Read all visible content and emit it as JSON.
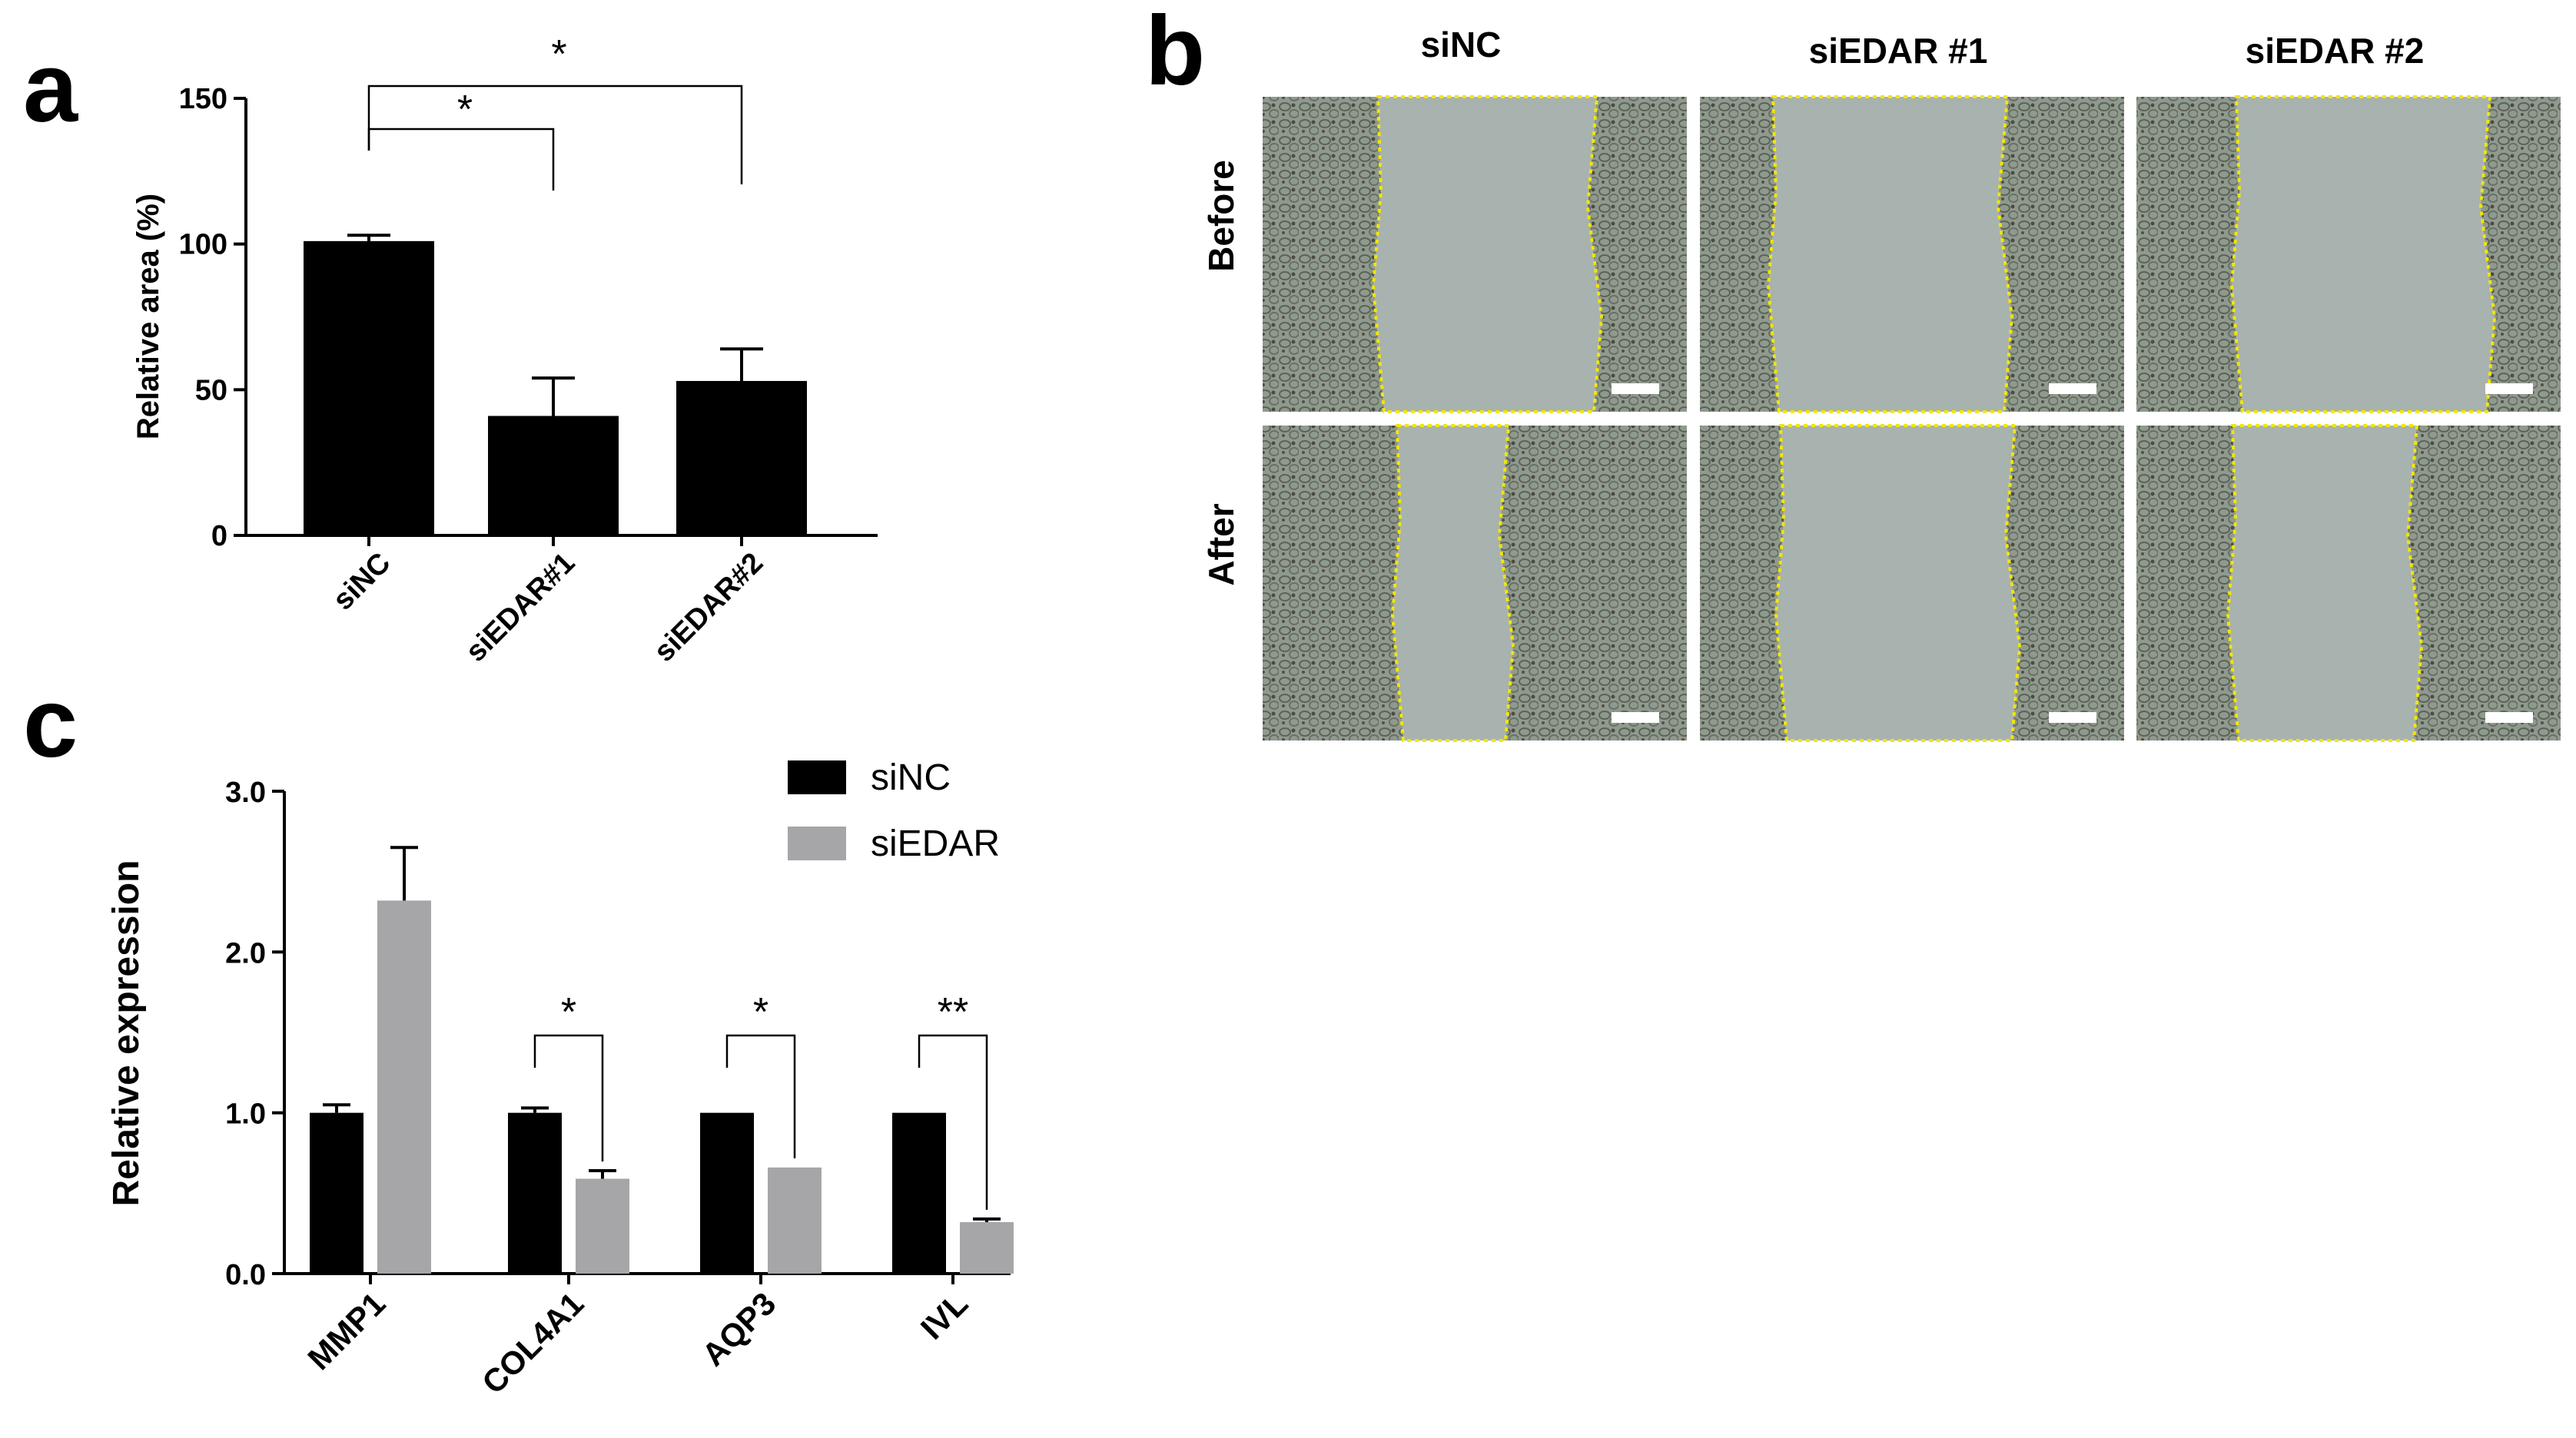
{
  "panels": {
    "a": "a",
    "b": "b",
    "c": "c"
  },
  "micrographs": {
    "columns": [
      "siNC",
      "siEDAR #1",
      "siEDAR #2"
    ],
    "rows": [
      "Before",
      "After"
    ],
    "wound_line_color": "#f2e600",
    "tile_color": "#9aa69c"
  },
  "chart_data": [
    {
      "type": "bar",
      "panel": "a",
      "categories": [
        "siNC",
        "siEDAR#1",
        "siEDAR#2"
      ],
      "values": [
        101,
        41,
        53
      ],
      "errors": [
        2,
        13,
        11
      ],
      "ylabel": "Relative area (%)",
      "ylim": [
        0,
        150
      ],
      "yticks": [
        "0",
        "50",
        "100",
        "150"
      ],
      "bar_color": "#000000",
      "significance": [
        {
          "from": 0,
          "to": 1,
          "label": "*"
        },
        {
          "from": 0,
          "to": 2,
          "label": "*"
        }
      ]
    },
    {
      "type": "bar",
      "panel": "c",
      "categories": [
        "MMP1",
        "COL4A1",
        "AQP3",
        "IVL"
      ],
      "series": [
        {
          "name": "siNC",
          "color": "#000000",
          "values": [
            1.0,
            1.0,
            1.0,
            1.0
          ],
          "errors": [
            0.05,
            0.03,
            0.0,
            0.0
          ]
        },
        {
          "name": "siEDAR",
          "color": "#a6a6a8",
          "values": [
            2.32,
            0.59,
            0.66,
            0.32
          ],
          "errors": [
            0.33,
            0.05,
            0.0,
            0.02
          ]
        }
      ],
      "ylabel": "Relative expression",
      "ylim": [
        0,
        3.0
      ],
      "yticks": [
        "0.0",
        "1.0",
        "2.0",
        "3.0"
      ],
      "legend_position": "top-right",
      "significance": [
        {
          "category": 1,
          "label": "*"
        },
        {
          "category": 2,
          "label": "*"
        },
        {
          "category": 3,
          "label": "**"
        }
      ]
    }
  ]
}
